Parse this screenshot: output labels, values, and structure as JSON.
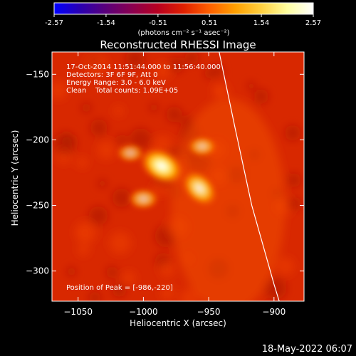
{
  "colorbar": {
    "ticks": [
      "-2.57",
      "-1.54",
      "-0.51",
      "0.51",
      "1.54",
      "2.57"
    ],
    "tick_values": [
      -2.57,
      -1.54,
      -0.51,
      0.51,
      1.54,
      2.57
    ],
    "range": [
      -2.57,
      2.57
    ],
    "unit_label": "(photons cm⁻² s⁻¹ asec⁻²)",
    "colors": [
      "#0000ff",
      "#2a00b0",
      "#5a007a",
      "#8a0050",
      "#b80020",
      "#e02000",
      "#ff6000",
      "#ffa000",
      "#ffd040",
      "#ffffa0",
      "#ffffff"
    ]
  },
  "plot": {
    "title": "Reconstructed RHESSI Image",
    "info_lines": [
      "17-Oct-2014 11:51:44.000 to 11:56:40.000",
      "Detectors: 3F 6F 9F, Att 0",
      "Energy Range: 3.0 - 6.0 keV",
      "Clean    Total counts: 1.09E+05"
    ],
    "peak_label": "Position of Peak = [-986,-220]"
  },
  "footer": {
    "date": "18-May-2022 06:07"
  },
  "chart_data": {
    "type": "heatmap",
    "title": "Reconstructed RHESSI Image",
    "xlabel": "Heliocentric X (arcsec)",
    "ylabel": "Heliocentric Y (arcsec)",
    "xlim": [
      -1070,
      -877
    ],
    "ylim": [
      -323,
      -133
    ],
    "x_ticks": [
      -1050,
      -1000,
      -950,
      -900
    ],
    "y_ticks": [
      -150,
      -200,
      -250,
      -300
    ],
    "x_tick_labels": [
      "−1050",
      "−1000",
      "−950",
      "−900"
    ],
    "y_tick_labels": [
      "−150",
      "−200",
      "−250",
      "−300"
    ],
    "peak": [
      -986,
      -220
    ],
    "sources": [
      {
        "x": -986,
        "y": -220,
        "intensity": 1.0
      },
      {
        "x": -957,
        "y": -237,
        "intensity": 0.8
      },
      {
        "x": -955,
        "y": -205,
        "intensity": 0.45
      },
      {
        "x": -1000,
        "y": -245,
        "intensity": 0.5
      },
      {
        "x": -1010,
        "y": -210,
        "intensity": 0.4
      }
    ],
    "limb_curve": [
      [
        -942,
        -133
      ],
      [
        -930,
        -190
      ],
      [
        -917,
        -250
      ],
      [
        -900,
        -310
      ],
      [
        -896,
        -323
      ]
    ]
  }
}
